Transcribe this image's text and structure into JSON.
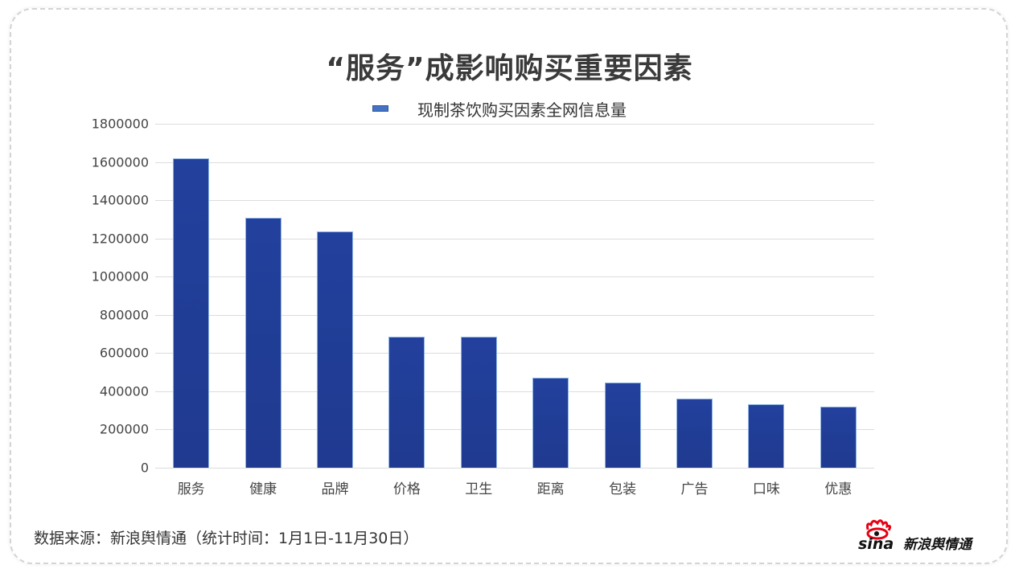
{
  "title": "“服务”成影响购买重要因素",
  "legend": {
    "label": "现制茶饮购买因素全网信息量",
    "color": "#4472C4"
  },
  "footer": {
    "source": "数据来源：新浪舆情通（统计时间：1月1日-11月30日）"
  },
  "logo": {
    "brand": "sina",
    "text": "新浪舆情通"
  },
  "y_ticks": [
    "1800000",
    "1600000",
    "1400000",
    "1200000",
    "1000000",
    "800000",
    "600000",
    "400000",
    "200000",
    "0"
  ],
  "chart_data": {
    "type": "bar",
    "title": "“服务”成影响购买重要因素",
    "xlabel": "",
    "ylabel": "",
    "ylim": [
      0,
      1800000
    ],
    "grid": true,
    "legend_position": "top",
    "categories": [
      "服务",
      "健康",
      "品牌",
      "价格",
      "卫生",
      "距离",
      "包装",
      "广告",
      "口味",
      "优惠"
    ],
    "series": [
      {
        "name": "现制茶饮购买因素全网信息量",
        "values": [
          1620000,
          1308000,
          1235000,
          687000,
          687000,
          472000,
          447000,
          363000,
          331000,
          321000
        ]
      }
    ],
    "bar_color": "#213C96"
  }
}
